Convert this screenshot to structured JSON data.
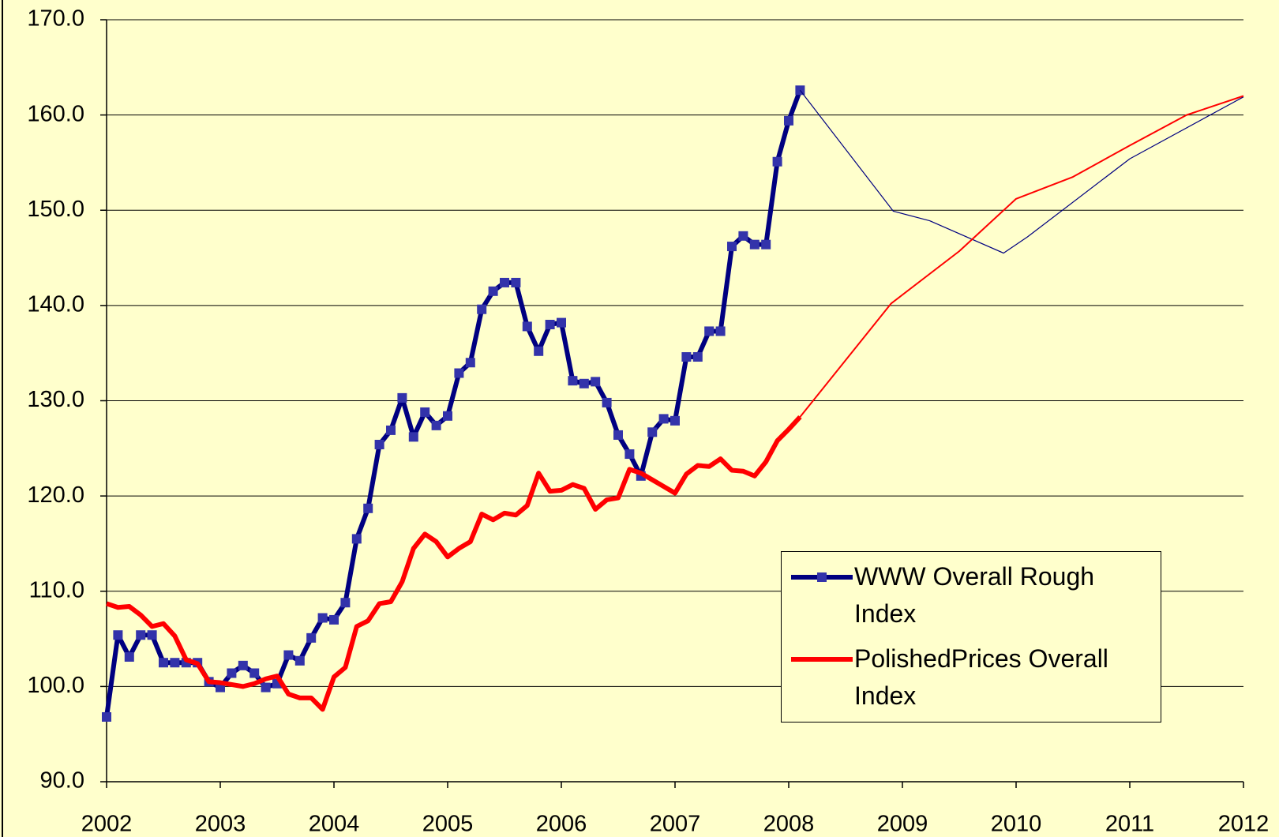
{
  "chart_data": {
    "type": "line",
    "xlim": [
      2002,
      2012
    ],
    "xticks": [
      2002,
      2003,
      2004,
      2005,
      2006,
      2007,
      2008,
      2009,
      2010,
      2011,
      2012
    ],
    "ylim": [
      90,
      170
    ],
    "yticks": [
      {
        "value": 90,
        "label": "90.0"
      },
      {
        "value": 100,
        "label": "100.0"
      },
      {
        "value": 110,
        "label": "110.0"
      },
      {
        "value": 120,
        "label": "120.0"
      },
      {
        "value": 130,
        "label": "130.0"
      },
      {
        "value": 140,
        "label": "140.0"
      },
      {
        "value": 150,
        "label": "150.0"
      },
      {
        "value": 160,
        "label": "160.0"
      },
      {
        "value": 170,
        "label": "170.0"
      }
    ],
    "grid": true,
    "series": [
      {
        "name": "WWW Overall Rough Index",
        "color": "#000080",
        "line_width": 6,
        "marker": "square",
        "x": [
          2002.0,
          2002.1,
          2002.2,
          2002.3,
          2002.4,
          2002.5,
          2002.6,
          2002.7,
          2002.8,
          2002.9,
          2003.0,
          2003.1,
          2003.2,
          2003.3,
          2003.4,
          2003.5,
          2003.6,
          2003.7,
          2003.8,
          2003.9,
          2004.0,
          2004.1,
          2004.2,
          2004.3,
          2004.4,
          2004.5,
          2004.6,
          2004.7,
          2004.8,
          2004.9,
          2005.0,
          2005.1,
          2005.2,
          2005.3,
          2005.4,
          2005.5,
          2005.6,
          2005.7,
          2005.8,
          2005.9,
          2006.0,
          2006.1,
          2006.2,
          2006.3,
          2006.4,
          2006.5,
          2006.6,
          2006.7,
          2006.8,
          2006.9,
          2007.0,
          2007.1,
          2007.2,
          2007.3,
          2007.4,
          2007.5,
          2007.6,
          2007.7,
          2007.8,
          2007.9,
          2008.0,
          2008.1
        ],
        "values": [
          96.8,
          105.4,
          103.1,
          105.4,
          105.4,
          102.5,
          102.5,
          102.5,
          102.5,
          100.5,
          99.9,
          101.4,
          102.2,
          101.4,
          99.9,
          100.3,
          103.3,
          102.7,
          105.1,
          107.2,
          107.0,
          108.8,
          115.5,
          118.7,
          125.4,
          126.9,
          130.3,
          126.2,
          128.8,
          127.4,
          128.4,
          132.9,
          134.0,
          139.6,
          141.5,
          142.4,
          142.4,
          137.8,
          135.2,
          138.0,
          138.2,
          132.1,
          131.8,
          132.0,
          129.8,
          126.4,
          124.4,
          122.1,
          126.7,
          128.1,
          127.9,
          134.6,
          134.6,
          137.3,
          137.3,
          146.2,
          147.3,
          146.4,
          146.4,
          155.1,
          159.4,
          162.6
        ]
      },
      {
        "name": "PolishedPrices Overall Index",
        "color": "#ff0000",
        "line_width": 6,
        "x": [
          2002.0,
          2002.1,
          2002.2,
          2002.3,
          2002.4,
          2002.5,
          2002.6,
          2002.7,
          2002.8,
          2002.9,
          2003.0,
          2003.1,
          2003.2,
          2003.3,
          2003.4,
          2003.5,
          2003.6,
          2003.7,
          2003.8,
          2003.9,
          2004.0,
          2004.1,
          2004.2,
          2004.3,
          2004.4,
          2004.5,
          2004.6,
          2004.7,
          2004.8,
          2004.9,
          2005.0,
          2005.1,
          2005.2,
          2005.3,
          2005.4,
          2005.5,
          2005.6,
          2005.7,
          2005.8,
          2005.9,
          2006.0,
          2006.1,
          2006.2,
          2006.3,
          2006.4,
          2006.5,
          2006.6,
          2006.7,
          2006.8,
          2006.9,
          2007.0,
          2007.1,
          2007.2,
          2007.3,
          2007.4,
          2007.5,
          2007.6,
          2007.7,
          2007.8,
          2007.9,
          2008.0,
          2008.1
        ],
        "values": [
          108.7,
          108.3,
          108.4,
          107.5,
          106.3,
          106.6,
          105.3,
          102.8,
          102.4,
          100.5,
          100.4,
          100.2,
          100.0,
          100.3,
          100.8,
          101.1,
          99.2,
          98.8,
          98.8,
          97.6,
          101.0,
          102.0,
          106.3,
          106.9,
          108.7,
          108.9,
          111.0,
          114.5,
          116.0,
          115.2,
          113.6,
          114.5,
          115.2,
          118.1,
          117.5,
          118.2,
          118.0,
          119.0,
          122.4,
          120.5,
          120.6,
          121.2,
          120.8,
          118.6,
          119.6,
          119.8,
          122.8,
          122.4,
          121.7,
          121.0,
          120.3,
          122.3,
          123.2,
          123.1,
          123.9,
          122.7,
          122.6,
          122.1,
          123.6,
          125.8,
          127.0,
          128.3
        ]
      },
      {
        "color": "#000080",
        "line_width": 1.2,
        "x": [
          2008.1,
          2008.92,
          2009.24,
          2009.89,
          2010.1,
          2011.0,
          2012.0
        ],
        "values": [
          162.6,
          149.9,
          148.9,
          145.5,
          147.2,
          155.4,
          161.9
        ]
      },
      {
        "color": "#ff0000",
        "line_width": 2,
        "x": [
          2008.1,
          2008.9,
          2009.5,
          2010.0,
          2010.5,
          2011.0,
          2011.5,
          2012.0
        ],
        "values": [
          128.3,
          140.2,
          145.7,
          151.2,
          153.5,
          156.8,
          160.0,
          162.0
        ]
      }
    ],
    "legend": "lower right"
  }
}
